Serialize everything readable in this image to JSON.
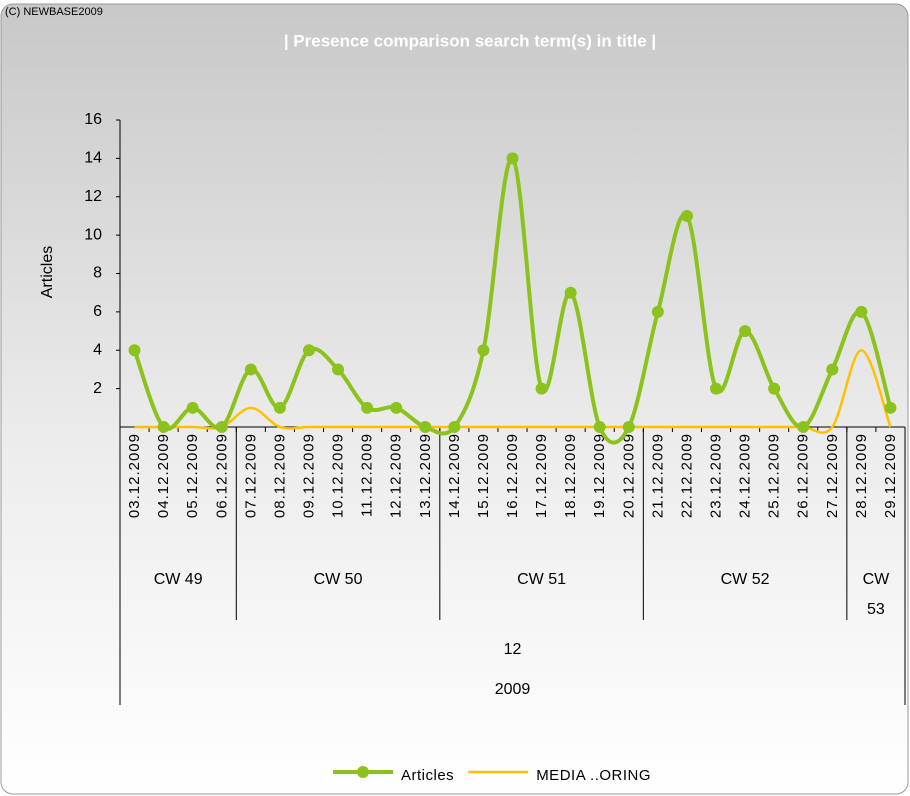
{
  "copyright": "(C) NEWBASE2009",
  "chart_data": {
    "type": "line",
    "title": "| Presence comparison search term(s) in title |",
    "y_label": "Articles",
    "categories": [
      "03.12.2009",
      "04.12.2009",
      "05.12.2009",
      "06.12.2009",
      "07.12.2009",
      "08.12.2009",
      "09.12.2009",
      "10.12.2009",
      "11.12.2009",
      "12.12.2009",
      "13.12.2009",
      "14.12.2009",
      "15.12.2009",
      "16.12.2009",
      "17.12.2009",
      "18.12.2009",
      "19.12.2009",
      "20.12.2009",
      "21.12.2009",
      "22.12.2009",
      "23.12.2009",
      "24.12.2009",
      "25.12.2009",
      "26.12.2009",
      "27.12.2009",
      "28.12.2009",
      "29.12.2009"
    ],
    "groups": [
      {
        "label": "CW 49",
        "span": 4
      },
      {
        "label": "CW 50",
        "span": 7
      },
      {
        "label": "CW 51",
        "span": 7
      },
      {
        "label": "CW 52",
        "span": 7
      },
      {
        "label": "CW 53",
        "span": 2
      }
    ],
    "month": "12",
    "year": "2009",
    "series": [
      {
        "name": "Articles",
        "color": "#8cc21d",
        "markers": true,
        "values": [
          4,
          0,
          1,
          0,
          3,
          1,
          4,
          3,
          1,
          1,
          0,
          0,
          4,
          14,
          2,
          7,
          0,
          0,
          6,
          11,
          2,
          5,
          2,
          0,
          3,
          6,
          1
        ]
      },
      {
        "name": "MEDIA ..ORING",
        "color": "#ffc000",
        "markers": false,
        "values": [
          0,
          0,
          0,
          0,
          1,
          0,
          0,
          0,
          0,
          0,
          0,
          0,
          0,
          0,
          0,
          0,
          0,
          0,
          0,
          0,
          0,
          0,
          0,
          0,
          0,
          4,
          0
        ]
      }
    ],
    "ylim": [
      0,
      16
    ],
    "yticks": [
      2,
      4,
      6,
      8,
      10,
      12,
      14,
      16
    ],
    "smooth": true,
    "legend": "bottom"
  }
}
